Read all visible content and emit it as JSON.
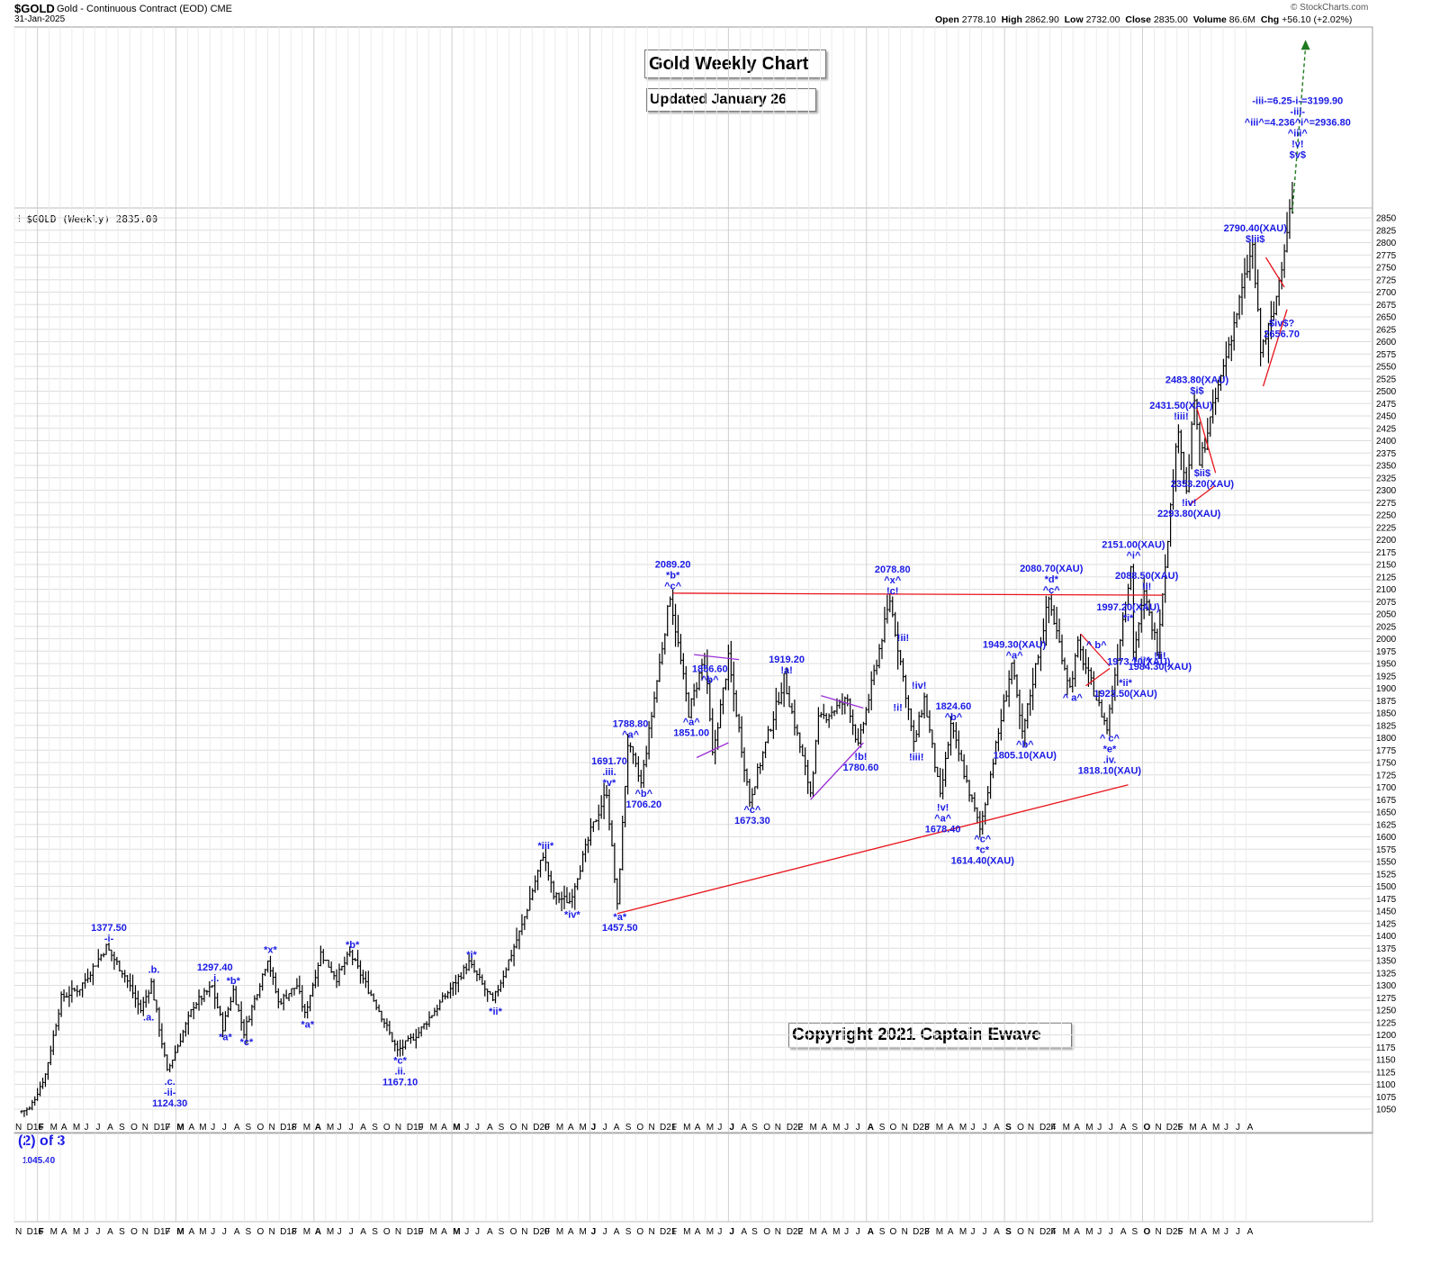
{
  "header": {
    "symbol": "$GOLD",
    "description": "Gold - Continuous Contract (EOD)",
    "exchange": "CME",
    "date": "31-Jan-2025",
    "open_label": "Open",
    "open": "2778.10",
    "high_label": "High",
    "high": "2862.90",
    "low_label": "Low",
    "low": "2732.00",
    "close_label": "Close",
    "close": "2835.00",
    "volume_label": "Volume",
    "volume": "86.6M",
    "chg_label": "Chg",
    "chg": "+56.10 (+2.02%)",
    "watermark": "© StockCharts.com",
    "legend": "$GOLD (Weekly) 2835.00"
  },
  "annotations": {
    "title": "Gold Weekly Chart",
    "updated": "Updated January 26",
    "copyright": "Copyright 2021 Captain Ewave",
    "lower_panel_title": "(2) of 3",
    "lower_panel_note": "1045.40"
  },
  "colors": {
    "bars": "#000000",
    "wave_labels": "#1a1ae6",
    "trendline": "#e8141c",
    "triangle": "#9a2fd6",
    "projection": "#1e7a1e",
    "grid": "#dddddd"
  },
  "chart_data": {
    "type": "ohlc",
    "frequency": "weekly",
    "title": "Gold Weekly Chart",
    "ylim": [
      1030,
      2870
    ],
    "y_ticks": [
      1050,
      1075,
      1100,
      1125,
      1150,
      1175,
      1200,
      1225,
      1250,
      1275,
      1300,
      1325,
      1350,
      1375,
      1400,
      1425,
      1450,
      1475,
      1500,
      1525,
      1550,
      1575,
      1600,
      1625,
      1650,
      1675,
      1700,
      1725,
      1750,
      1775,
      1800,
      1825,
      1850,
      1875,
      1900,
      1925,
      1950,
      1975,
      2000,
      2025,
      2050,
      2075,
      2100,
      2125,
      2150,
      2175,
      2200,
      2225,
      2250,
      2275,
      2300,
      2325,
      2350,
      2375,
      2400,
      2425,
      2450,
      2475,
      2500,
      2525,
      2550,
      2575,
      2600,
      2625,
      2650,
      2675,
      2700,
      2725,
      2750,
      2775,
      2800,
      2825,
      2850
    ],
    "x_tick_labels": [
      "N",
      "D16",
      "F",
      "M",
      "A",
      "M",
      "J",
      "J",
      "A",
      "S",
      "O",
      "N",
      "D17",
      "F",
      "M",
      "A",
      "M",
      "J",
      "J",
      "A",
      "S",
      "O",
      "N",
      "D18",
      "F",
      "M",
      "A",
      "M",
      "J",
      "J",
      "A",
      "S",
      "O",
      "N",
      "D19",
      "F",
      "M",
      "A",
      "M",
      "J",
      "J",
      "A",
      "S",
      "O",
      "N",
      "D20",
      "F",
      "M",
      "A",
      "M",
      "J",
      "J",
      "A",
      "S",
      "O",
      "N",
      "D21",
      "F",
      "M",
      "A",
      "M",
      "J",
      "J",
      "A",
      "S",
      "O",
      "N",
      "D22",
      "F",
      "M",
      "A",
      "M",
      "J",
      "J",
      "A",
      "S",
      "O",
      "N",
      "D23",
      "F",
      "M",
      "A",
      "M",
      "J",
      "J",
      "A",
      "S",
      "O",
      "N",
      "D24",
      "F",
      "M",
      "A",
      "M",
      "J",
      "J",
      "A",
      "S",
      "O",
      "N",
      "D25",
      "F",
      "M",
      "A",
      "M",
      "J",
      "J",
      "A"
    ],
    "x_start": "2015-11",
    "pivots": [
      [
        "2015-11-20",
        1045
      ],
      [
        "2015-12-18",
        1050
      ],
      [
        "2016-01-29",
        1120
      ],
      [
        "2016-03-11",
        1275
      ],
      [
        "2016-04-29",
        1295
      ],
      [
        "2016-07-08",
        1377.5
      ],
      [
        "2016-08-26",
        1320
      ],
      [
        "2016-10-07",
        1250
      ],
      [
        "2016-11-04",
        1305
      ],
      [
        "2016-12-16",
        1124.3
      ],
      [
        "2017-02-24",
        1260
      ],
      [
        "2017-04-14",
        1297.4
      ],
      [
        "2017-05-12",
        1215
      ],
      [
        "2017-06-09",
        1290
      ],
      [
        "2017-07-07",
        1205
      ],
      [
        "2017-09-08",
        1355
      ],
      [
        "2017-10-06",
        1265
      ],
      [
        "2017-11-24",
        1300
      ],
      [
        "2017-12-15",
        1240
      ],
      [
        "2018-01-26",
        1365
      ],
      [
        "2018-03-09",
        1315
      ],
      [
        "2018-04-13",
        1365
      ],
      [
        "2018-06-29",
        1250
      ],
      [
        "2018-08-17",
        1167.1
      ],
      [
        "2018-10-12",
        1205
      ],
      [
        "2019-02-22",
        1345
      ],
      [
        "2019-04-26",
        1266
      ],
      [
        "2019-07-12",
        1420
      ],
      [
        "2019-09-06",
        1565
      ],
      [
        "2019-10-04",
        1480
      ],
      [
        "2019-11-15",
        1470
      ],
      [
        "2020-01-10",
        1610
      ],
      [
        "2020-02-21",
        1691.7
      ],
      [
        "2020-03-20",
        1457.5
      ],
      [
        "2020-04-17",
        1788.8
      ],
      [
        "2020-05-22",
        1706.2
      ],
      [
        "2020-08-07",
        2089.2
      ],
      [
        "2020-09-25",
        1851
      ],
      [
        "2020-11-06",
        1965
      ],
      [
        "2020-11-27",
        1764
      ],
      [
        "2021-01-08",
        1959
      ],
      [
        "2021-03-05",
        1673.3
      ],
      [
        "2021-06-04",
        1919.2
      ],
      [
        "2021-08-13",
        1690
      ],
      [
        "2021-09-03",
        1834
      ],
      [
        "2021-11-19",
        1877
      ],
      [
        "2021-12-17",
        1780.6
      ],
      [
        "2022-03-11",
        2078.8
      ],
      [
        "2022-04-22",
        1890
      ],
      [
        "2022-05-13",
        1785
      ],
      [
        "2022-06-10",
        1880
      ],
      [
        "2022-07-22",
        1678.4
      ],
      [
        "2022-08-19",
        1824.6
      ],
      [
        "2022-11-04",
        1614.4
      ],
      [
        "2023-01-27",
        1949.3
      ],
      [
        "2023-02-24",
        1805.1
      ],
      [
        "2023-05-05",
        2080.7
      ],
      [
        "2023-06-30",
        1900
      ],
      [
        "2023-07-21",
        1987
      ],
      [
        "2023-10-06",
        1818.1
      ],
      [
        "2023-12-08",
        2151
      ],
      [
        "2023-12-15",
        1973.1
      ],
      [
        "2024-01-12",
        2088.5
      ],
      [
        "2024-02-16",
        1984.3
      ],
      [
        "2024-04-12",
        2431.5
      ],
      [
        "2024-05-03",
        2293.8
      ],
      [
        "2024-05-24",
        2483.8
      ],
      [
        "2024-06-07",
        2353.2
      ],
      [
        "2024-10-25",
        2790.4
      ],
      [
        "2024-11-15",
        2580
      ],
      [
        "2024-12-20",
        2656.7
      ],
      [
        "2025-01-31",
        2862.9
      ]
    ],
    "wave_labels": [
      {
        "date": "2016-07-08",
        "price": 1377.5,
        "pos": "above",
        "lines": [
          "1377.50",
          "-i-"
        ]
      },
      {
        "date": "2016-11-04",
        "price": 1315,
        "pos": "above",
        "lines": [
          ".b."
        ]
      },
      {
        "date": "2016-10-21",
        "price": 1255,
        "pos": "below",
        "lines": [
          ".a."
        ]
      },
      {
        "date": "2016-12-16",
        "price": 1124.3,
        "pos": "below",
        "lines": [
          ".c.",
          "-ii-",
          "1124.30"
        ]
      },
      {
        "date": "2017-04-14",
        "price": 1297.4,
        "pos": "above",
        "lines": [
          "1297.40",
          ".i."
        ]
      },
      {
        "date": "2017-05-12",
        "price": 1215,
        "pos": "below",
        "lines": [
          "*a*"
        ]
      },
      {
        "date": "2017-06-02",
        "price": 1292,
        "pos": "above",
        "lines": [
          "*b*"
        ]
      },
      {
        "date": "2017-07-07",
        "price": 1205,
        "pos": "below",
        "lines": [
          "*c*"
        ]
      },
      {
        "date": "2017-09-08",
        "price": 1355,
        "pos": "above",
        "lines": [
          "*x*"
        ]
      },
      {
        "date": "2017-12-15",
        "price": 1240,
        "pos": "below",
        "lines": [
          "*a*"
        ]
      },
      {
        "date": "2018-04-13",
        "price": 1365,
        "pos": "above",
        "lines": [
          "*b*"
        ]
      },
      {
        "date": "2018-08-17",
        "price": 1167.1,
        "pos": "below",
        "lines": [
          "*c*",
          ".ii.",
          "1167.10"
        ]
      },
      {
        "date": "2019-02-22",
        "price": 1345,
        "pos": "above",
        "lines": [
          "*i*"
        ]
      },
      {
        "date": "2019-04-26",
        "price": 1266,
        "pos": "below",
        "lines": [
          "*ii*"
        ]
      },
      {
        "date": "2019-09-06",
        "price": 1565,
        "pos": "above",
        "lines": [
          "*iii*"
        ]
      },
      {
        "date": "2019-11-15",
        "price": 1462,
        "pos": "below",
        "lines": [
          "*iv*"
        ]
      },
      {
        "date": "2020-02-21",
        "price": 1691.7,
        "pos": "above",
        "lines": [
          "1691.70",
          ".iii.",
          "*v*"
        ]
      },
      {
        "date": "2020-03-20",
        "price": 1457.5,
        "pos": "below",
        "lines": [
          "*a*",
          "1457.50"
        ]
      },
      {
        "date": "2020-04-17",
        "price": 1788.8,
        "pos": "above",
        "lines": [
          "1788.80",
          "^a^"
        ]
      },
      {
        "date": "2020-05-22",
        "price": 1706.2,
        "pos": "below",
        "lines": [
          "^b^",
          "1706.20"
        ]
      },
      {
        "date": "2020-08-07",
        "price": 2089.2,
        "pos": "above",
        "lines": [
          "2089.20",
          "*b*",
          "^c^"
        ]
      },
      {
        "date": "2020-09-25",
        "price": 1851,
        "pos": "below",
        "lines": [
          "^a^",
          "1851.00"
        ]
      },
      {
        "date": "2020-11-13",
        "price": 1900,
        "pos": "above",
        "lines": [
          "1856.60",
          "^b^"
        ]
      },
      {
        "date": "2021-03-05",
        "price": 1673.3,
        "pos": "below",
        "lines": [
          "^c^",
          "1673.30"
        ]
      },
      {
        "date": "2021-06-04",
        "price": 1919.2,
        "pos": "above",
        "lines": [
          "1919.20",
          "!a!"
        ]
      },
      {
        "date": "2021-12-17",
        "price": 1780.6,
        "pos": "below",
        "lines": [
          "!b!",
          "1780.60"
        ]
      },
      {
        "date": "2022-03-11",
        "price": 2078.8,
        "pos": "above",
        "lines": [
          "2078.80",
          "^x^",
          "!c!"
        ]
      },
      {
        "date": "2022-04-08",
        "price": 1985,
        "pos": "above",
        "lines": [
          "!ii!"
        ]
      },
      {
        "date": "2022-03-25",
        "price": 1880,
        "pos": "below",
        "lines": [
          "!i!"
        ]
      },
      {
        "date": "2022-05-20",
        "price": 1888,
        "pos": "above",
        "lines": [
          "!iv!"
        ]
      },
      {
        "date": "2022-05-13",
        "price": 1780,
        "pos": "below",
        "lines": [
          "!iii!"
        ]
      },
      {
        "date": "2022-08-19",
        "price": 1824.6,
        "pos": "above",
        "lines": [
          "1824.60",
          "^b^"
        ]
      },
      {
        "date": "2022-07-22",
        "price": 1678.4,
        "pos": "below",
        "lines": [
          "!v!",
          "^a^",
          "1678.40"
        ]
      },
      {
        "date": "2022-11-04",
        "price": 1614.4,
        "pos": "below",
        "lines": [
          "^c^",
          "*c*",
          "1614.40(XAU)"
        ]
      },
      {
        "date": "2023-01-27",
        "price": 1949.3,
        "pos": "above",
        "lines": [
          "1949.30(XAU)",
          "^a^"
        ]
      },
      {
        "date": "2023-02-24",
        "price": 1805.1,
        "pos": "below",
        "lines": [
          "^b^",
          "1805.10(XAU)"
        ]
      },
      {
        "date": "2023-05-05",
        "price": 2080.7,
        "pos": "above",
        "lines": [
          "2080.70(XAU)",
          "*d*",
          "^c^"
        ]
      },
      {
        "date": "2023-06-30",
        "price": 1900,
        "pos": "below",
        "lines": [
          "^ a^"
        ]
      },
      {
        "date": "2023-09-01",
        "price": 1970,
        "pos": "above",
        "lines": [
          "^ b^"
        ]
      },
      {
        "date": "2023-10-06",
        "price": 1818.1,
        "pos": "below",
        "lines": [
          "^ c^",
          "*e*",
          ".iv.",
          "1818.10(XAU)"
        ]
      },
      {
        "date": "2023-11-24",
        "price": 2025,
        "pos": "above",
        "lines": [
          "1997.20(XAU)",
          "*i*"
        ]
      },
      {
        "date": "2023-11-17",
        "price": 1930,
        "pos": "below",
        "lines": [
          "*ii*",
          "1923.50(XAU)"
        ]
      },
      {
        "date": "2023-12-08",
        "price": 2151,
        "pos": "above",
        "lines": [
          "2151.00(XAU)",
          "^i^"
        ]
      },
      {
        "date": "2023-12-29",
        "price": 1975,
        "pos": "below",
        "lines": [
          "^ ii^"
        ]
      },
      {
        "date": "2024-01-12",
        "price": 2088.5,
        "pos": "above",
        "lines": [
          "2088.50(XAU)",
          "!i!"
        ]
      },
      {
        "date": "2024-02-16",
        "price": 1984.3,
        "pos": "below",
        "lines": [
          "!ii!",
          "1984.30(XAU)"
        ]
      },
      {
        "date": "2024-04-12",
        "price": 2431.5,
        "pos": "above",
        "lines": [
          "2431.50(XAU)",
          "!iii!"
        ]
      },
      {
        "date": "2024-05-03",
        "price": 2293.8,
        "pos": "below",
        "lines": [
          "!iv!",
          "2293.80(XAU)"
        ]
      },
      {
        "date": "2024-05-24",
        "price": 2483.8,
        "pos": "above",
        "lines": [
          "2483.80(XAU)",
          "$i$"
        ]
      },
      {
        "date": "2024-06-07",
        "price": 2353.2,
        "pos": "below",
        "lines": [
          "$ii$",
          "2353.20(XAU)"
        ]
      },
      {
        "date": "2024-10-25",
        "price": 2790.4,
        "pos": "above",
        "lines": [
          "2790.40(XAU)",
          "$iii$"
        ]
      },
      {
        "date": "2025-01-03",
        "price": 2656.7,
        "pos": "below",
        "lines": [
          "$iv$?",
          "2656.70"
        ]
      },
      {
        "date": "2025-02-14",
        "price": 2960,
        "pos": "above",
        "lines": [
          "-iii-=6.25-i-=3199.90",
          "-iii-",
          "^iii^=4.236^i^=2936.80",
          "^iii^",
          "!v!",
          "$v$"
        ]
      },
      {
        "date": "2023-12-22",
        "price": 1973.1,
        "pos": "below",
        "lines": [
          "1973.10(XAU)"
        ]
      }
    ],
    "trendlines": [
      {
        "color": "red",
        "points": [
          [
            "2020-03-13",
            1445
          ],
          [
            "2023-11-24",
            1705
          ]
        ]
      },
      {
        "color": "red",
        "points": [
          [
            "2020-08-07",
            2092
          ],
          [
            "2024-02-23",
            2088
          ]
        ]
      },
      {
        "color": "purple",
        "points": [
          [
            "2020-10-02",
            1968
          ],
          [
            "2021-01-29",
            1958
          ]
        ]
      },
      {
        "color": "purple",
        "points": [
          [
            "2020-10-09",
            1760
          ],
          [
            "2021-01-01",
            1790
          ]
        ]
      },
      {
        "color": "purple",
        "points": [
          [
            "2021-08-06",
            1675
          ],
          [
            "2021-12-24",
            1790
          ]
        ]
      },
      {
        "color": "purple",
        "points": [
          [
            "2021-09-03",
            1885
          ],
          [
            "2021-12-24",
            1860
          ]
        ]
      },
      {
        "color": "red",
        "points": [
          [
            "2023-07-21",
            2010
          ],
          [
            "2023-10-06",
            1945
          ]
        ]
      },
      {
        "color": "red",
        "points": [
          [
            "2023-08-04",
            1905
          ],
          [
            "2023-10-06",
            1940
          ]
        ]
      },
      {
        "color": "red",
        "points": [
          [
            "2024-05-03",
            2270
          ],
          [
            "2024-07-12",
            2310
          ]
        ]
      },
      {
        "color": "red",
        "points": [
          [
            "2024-05-24",
            2465
          ],
          [
            "2024-07-12",
            2335
          ]
        ]
      },
      {
        "color": "red",
        "points": [
          [
            "2024-11-15",
            2510
          ],
          [
            "2025-01-17",
            2665
          ]
        ]
      },
      {
        "color": "red",
        "points": [
          [
            "2024-11-22",
            2770
          ],
          [
            "2025-01-10",
            2710
          ]
        ]
      },
      {
        "color": "green-dashed",
        "points": [
          [
            "2025-01-31",
            2862.9
          ],
          [
            "2025-03-07",
            3195
          ]
        ]
      }
    ]
  }
}
